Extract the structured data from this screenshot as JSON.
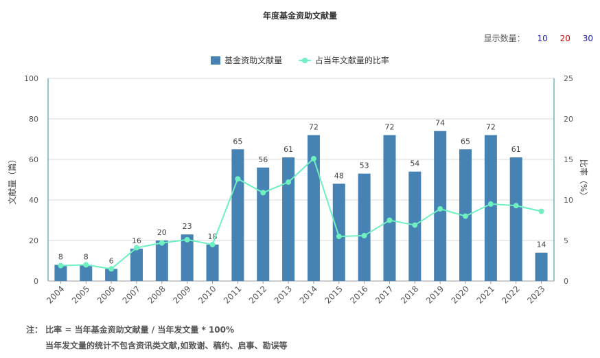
{
  "title": "年度基金资助文献量",
  "display_count": {
    "label": "显示数量：",
    "options": [
      {
        "label": "10",
        "color": "#1a1aa6"
      },
      {
        "label": "20",
        "color": "#d40000"
      },
      {
        "label": "30",
        "color": "#1a1aa6"
      }
    ]
  },
  "notes": {
    "line1": "注： 比率 = 当年基金资助文献量 / 当年发文量 * 100%",
    "line2": "当年发文量的统计不包含资讯类文献,如致谢、稿约、启事、勘误等"
  },
  "chart_data": {
    "type": "bar",
    "categories": [
      "2004",
      "2005",
      "2006",
      "2007",
      "2008",
      "2009",
      "2010",
      "2011",
      "2012",
      "2013",
      "2014",
      "2015",
      "2016",
      "2017",
      "2018",
      "2019",
      "2020",
      "2021",
      "2022",
      "2023"
    ],
    "series": [
      {
        "name": "基金资助文献量",
        "type": "bar",
        "axis": "left",
        "color": "#4682b4",
        "values": [
          8,
          8,
          6,
          16,
          20,
          23,
          18,
          65,
          56,
          61,
          72,
          48,
          53,
          72,
          54,
          74,
          65,
          72,
          61,
          14
        ]
      },
      {
        "name": "占当年文献量的比率",
        "type": "line",
        "axis": "right",
        "color": "#6ef0c0",
        "values": [
          1.9,
          2.0,
          1.5,
          4.1,
          4.7,
          5.1,
          4.5,
          12.6,
          10.9,
          12.2,
          15.1,
          5.5,
          5.6,
          7.5,
          6.9,
          8.9,
          8.0,
          9.5,
          9.3,
          8.6
        ]
      }
    ],
    "ylabel": "文献量（篇）",
    "y2label": "比率（%）",
    "ylim": [
      0,
      100
    ],
    "yticks": [
      0,
      20,
      40,
      60,
      80,
      100
    ],
    "y2lim": [
      0,
      25
    ],
    "y2ticks": [
      0,
      5,
      10,
      15,
      20,
      25
    ],
    "grid": true,
    "legend": "top-center"
  }
}
